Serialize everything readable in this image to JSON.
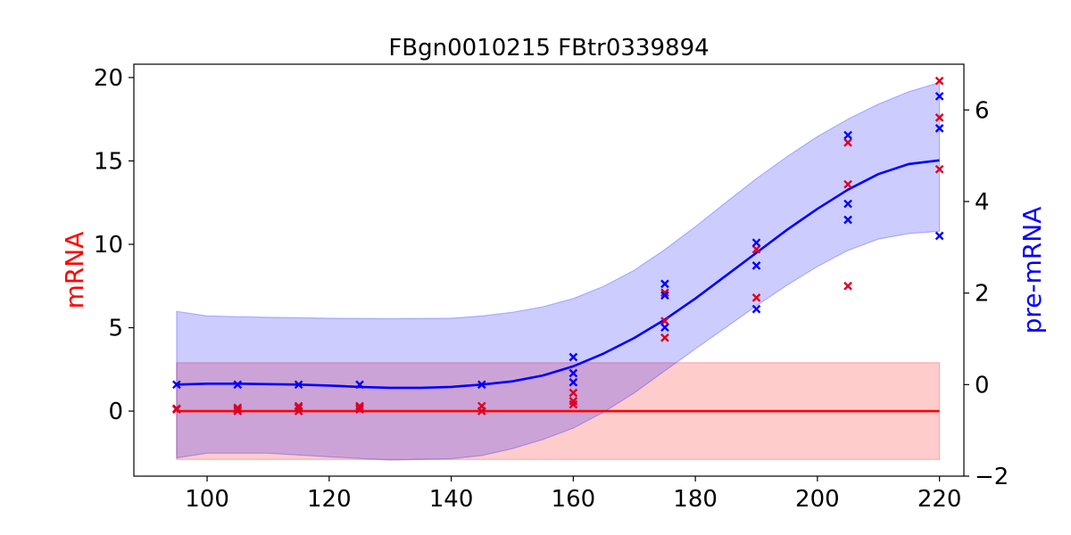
{
  "chart_data": {
    "type": "line",
    "title": "FBgn0010215 FBtr0339894",
    "xlabel": "",
    "xlim": [
      88,
      224
    ],
    "xticks": [
      100,
      120,
      140,
      160,
      180,
      200,
      220
    ],
    "y_left": {
      "label": "mRNA",
      "color": "#ff0000",
      "lim": [
        -3.9,
        20.8
      ],
      "ticks": [
        0,
        5,
        10,
        15,
        20
      ]
    },
    "y_right": {
      "label": "pre-mRNA",
      "color": "#0000ff",
      "lim": [
        -2.0,
        7.0
      ],
      "ticks": [
        -2,
        0,
        2,
        4,
        6
      ]
    },
    "grid": false,
    "series": [
      {
        "name": "mRNA",
        "axis": "left",
        "color": "#ff0000",
        "fill_color": "#ff0000",
        "mean": {
          "x": [
            95,
            220
          ],
          "y": [
            0,
            0
          ]
        },
        "band": {
          "x": [
            95,
            220
          ],
          "upper": [
            2.9,
            2.9
          ],
          "lower": [
            -2.9,
            -2.9
          ]
        },
        "points": [
          {
            "x": 95,
            "y": 0.1
          },
          {
            "x": 95,
            "y": 0.15
          },
          {
            "x": 105,
            "y": 0.0
          },
          {
            "x": 105,
            "y": 0.1
          },
          {
            "x": 105,
            "y": 0.2
          },
          {
            "x": 115,
            "y": 0.0
          },
          {
            "x": 115,
            "y": 0.2
          },
          {
            "x": 115,
            "y": 0.3
          },
          {
            "x": 125,
            "y": 0.1
          },
          {
            "x": 125,
            "y": 0.2
          },
          {
            "x": 125,
            "y": 0.3
          },
          {
            "x": 145,
            "y": 0.0
          },
          {
            "x": 145,
            "y": 0.3
          },
          {
            "x": 160,
            "y": 0.4
          },
          {
            "x": 160,
            "y": 0.6
          },
          {
            "x": 160,
            "y": 1.1
          },
          {
            "x": 175,
            "y": 4.4
          },
          {
            "x": 175,
            "y": 5.4
          },
          {
            "x": 175,
            "y": 7.1
          },
          {
            "x": 190,
            "y": 6.8
          },
          {
            "x": 190,
            "y": 9.7
          },
          {
            "x": 205,
            "y": 7.5
          },
          {
            "x": 205,
            "y": 13.6
          },
          {
            "x": 205,
            "y": 16.1
          },
          {
            "x": 220,
            "y": 14.5
          },
          {
            "x": 220,
            "y": 17.6
          },
          {
            "x": 220,
            "y": 19.8
          }
        ]
      },
      {
        "name": "pre-mRNA",
        "axis": "right",
        "color": "#0000ff",
        "fill_color": "#0000ff",
        "mean": {
          "x": [
            95,
            100,
            105,
            110,
            115,
            120,
            125,
            130,
            135,
            140,
            145,
            150,
            155,
            160,
            165,
            170,
            175,
            180,
            185,
            190,
            195,
            200,
            205,
            210,
            215,
            220
          ],
          "y": [
            0.0,
            0.02,
            0.02,
            0.01,
            0.0,
            -0.02,
            -0.05,
            -0.07,
            -0.07,
            -0.05,
            0.0,
            0.07,
            0.2,
            0.4,
            0.68,
            1.02,
            1.42,
            1.88,
            2.38,
            2.88,
            3.38,
            3.84,
            4.26,
            4.6,
            4.82,
            4.9
          ]
        },
        "band": {
          "x": [
            95,
            100,
            110,
            120,
            130,
            140,
            145,
            150,
            155,
            160,
            165,
            170,
            175,
            180,
            185,
            190,
            195,
            200,
            205,
            210,
            215,
            220
          ],
          "upper": [
            1.6,
            1.5,
            1.47,
            1.45,
            1.44,
            1.45,
            1.5,
            1.58,
            1.7,
            1.88,
            2.15,
            2.5,
            2.95,
            3.45,
            3.98,
            4.5,
            4.98,
            5.42,
            5.8,
            6.13,
            6.4,
            6.6
          ],
          "lower": [
            -1.6,
            -1.5,
            -1.5,
            -1.58,
            -1.65,
            -1.62,
            -1.55,
            -1.4,
            -1.2,
            -0.95,
            -0.6,
            -0.18,
            0.3,
            0.78,
            1.25,
            1.72,
            2.17,
            2.58,
            2.93,
            3.18,
            3.3,
            3.35
          ]
        },
        "points": [
          {
            "x": 95,
            "y": 0.0
          },
          {
            "x": 105,
            "y": 0.0
          },
          {
            "x": 115,
            "y": 0.0
          },
          {
            "x": 125,
            "y": 0.0
          },
          {
            "x": 145,
            "y": 0.0
          },
          {
            "x": 160,
            "y": 0.05
          },
          {
            "x": 160,
            "y": 0.25
          },
          {
            "x": 160,
            "y": 0.6
          },
          {
            "x": 175,
            "y": 1.25
          },
          {
            "x": 175,
            "y": 1.95
          },
          {
            "x": 175,
            "y": 2.2
          },
          {
            "x": 190,
            "y": 1.65
          },
          {
            "x": 190,
            "y": 2.6
          },
          {
            "x": 190,
            "y": 3.1
          },
          {
            "x": 205,
            "y": 3.6
          },
          {
            "x": 205,
            "y": 3.95
          },
          {
            "x": 205,
            "y": 5.45
          },
          {
            "x": 220,
            "y": 3.25
          },
          {
            "x": 220,
            "y": 5.6
          },
          {
            "x": 220,
            "y": 6.3
          }
        ]
      }
    ]
  }
}
